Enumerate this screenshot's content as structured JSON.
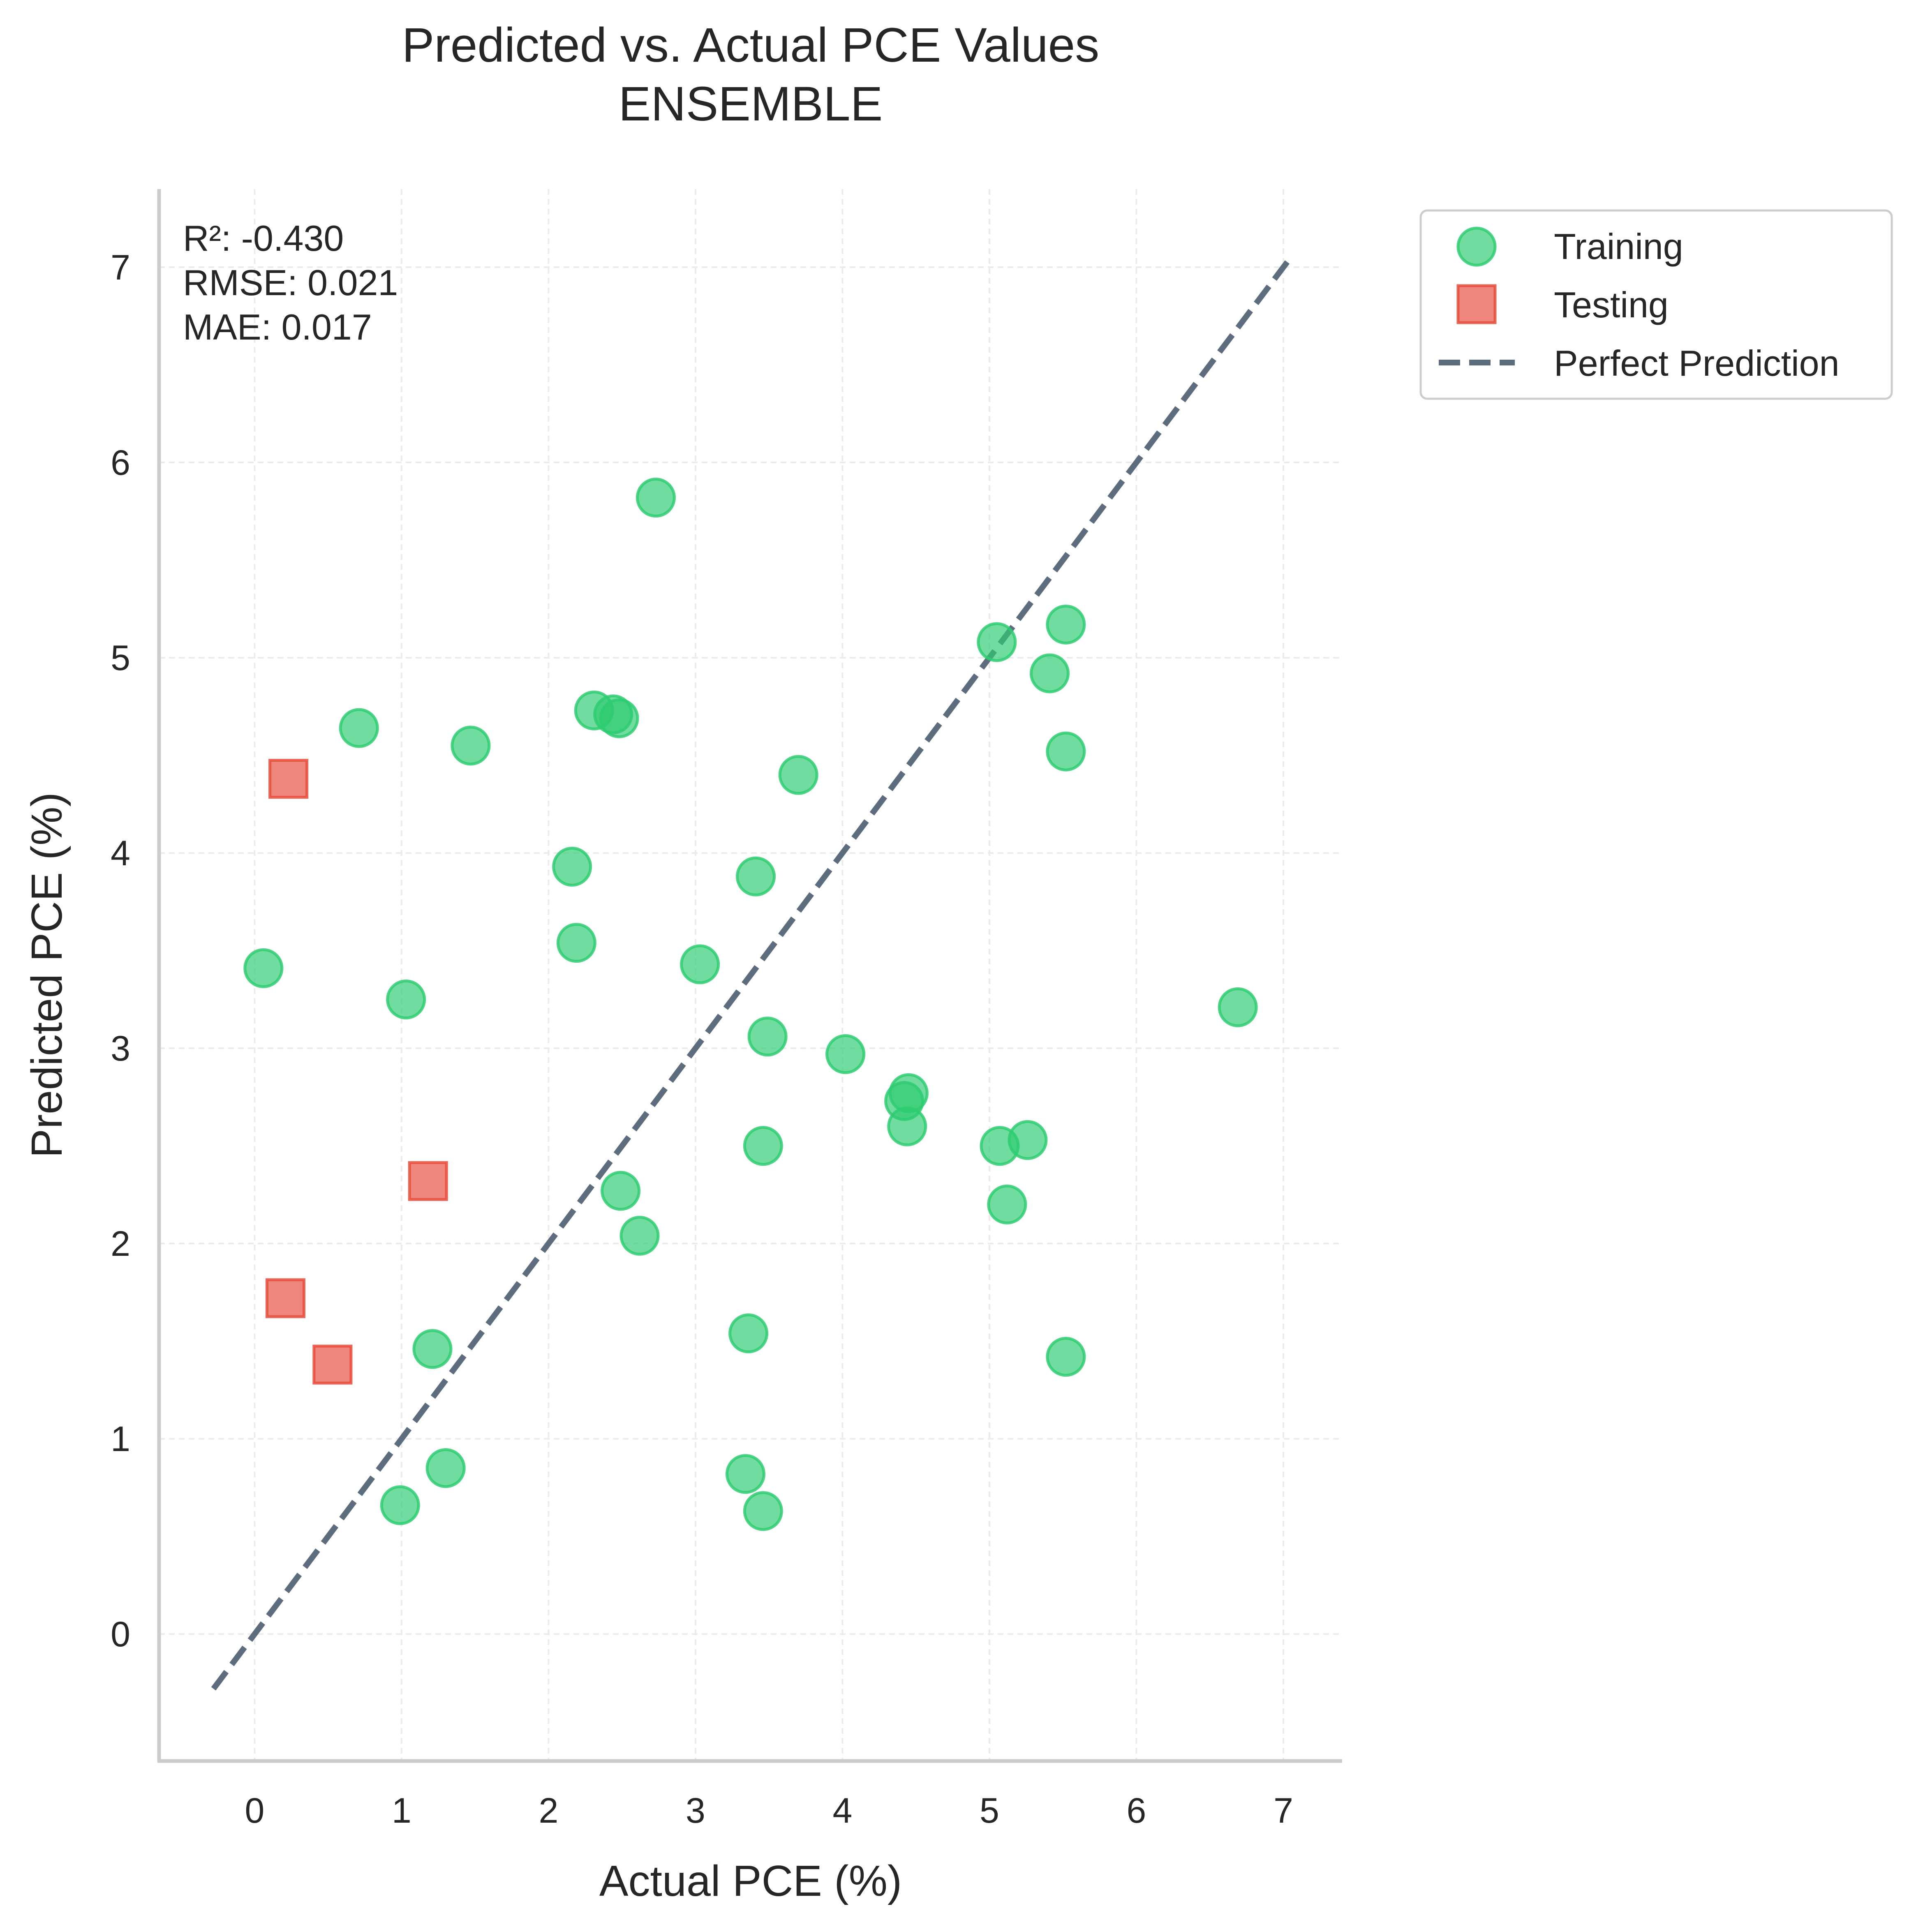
{
  "chart_data": {
    "type": "scatter",
    "title": "Predicted vs. Actual PCE Values",
    "subtitle": "ENSEMBLE",
    "xlabel": "Actual PCE (%)",
    "ylabel": "Predicted PCE (%)",
    "xlim": [
      -0.65,
      7.4
    ],
    "ylim": [
      -0.65,
      7.4
    ],
    "xticks": [
      "0",
      "1",
      "2",
      "3",
      "4",
      "5",
      "6",
      "7"
    ],
    "yticks": [
      "0",
      "1",
      "2",
      "3",
      "4",
      "5",
      "6",
      "7"
    ],
    "grid": true,
    "legend_position": "outside-top-right",
    "annotation": [
      "R²: -0.430",
      "RMSE: 0.021",
      "MAE: 0.017"
    ],
    "series": [
      {
        "name": "Training",
        "marker": "circle",
        "color": "#2ecc71",
        "points": [
          [
            0.06,
            3.41
          ],
          [
            0.71,
            4.64
          ],
          [
            1.03,
            3.25
          ],
          [
            0.99,
            0.66
          ],
          [
            1.21,
            1.46
          ],
          [
            1.3,
            0.85
          ],
          [
            1.47,
            4.55
          ],
          [
            2.16,
            3.93
          ],
          [
            2.19,
            3.54
          ],
          [
            2.31,
            4.73
          ],
          [
            2.44,
            4.71
          ],
          [
            2.48,
            4.69
          ],
          [
            2.49,
            2.27
          ],
          [
            2.62,
            2.04
          ],
          [
            2.73,
            5.82
          ],
          [
            3.03,
            3.43
          ],
          [
            3.34,
            0.82
          ],
          [
            3.36,
            1.54
          ],
          [
            3.41,
            3.88
          ],
          [
            3.46,
            2.5
          ],
          [
            3.46,
            0.63
          ],
          [
            3.49,
            3.06
          ],
          [
            3.7,
            4.4
          ],
          [
            4.02,
            2.97
          ],
          [
            4.42,
            2.73
          ],
          [
            4.44,
            2.6
          ],
          [
            4.45,
            2.77
          ],
          [
            5.05,
            5.08
          ],
          [
            5.07,
            2.5
          ],
          [
            5.12,
            2.2
          ],
          [
            5.26,
            2.53
          ],
          [
            5.41,
            4.92
          ],
          [
            5.52,
            5.17
          ],
          [
            5.52,
            4.52
          ],
          [
            5.52,
            1.42
          ],
          [
            6.69,
            3.21
          ]
        ]
      },
      {
        "name": "Testing",
        "marker": "square",
        "color": "#e74c3c",
        "points": [
          [
            0.23,
            4.38
          ],
          [
            0.21,
            1.72
          ],
          [
            0.53,
            1.38
          ],
          [
            1.18,
            2.32
          ]
        ]
      },
      {
        "name": "Perfect Prediction",
        "marker": "dashed-line",
        "color": "#5d6d7e",
        "points": [
          [
            -0.28,
            -0.28
          ],
          [
            7.03,
            7.03
          ]
        ]
      }
    ]
  }
}
